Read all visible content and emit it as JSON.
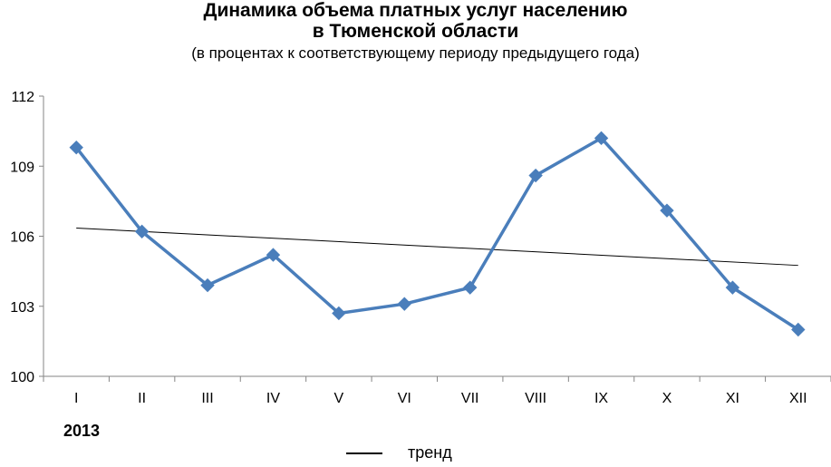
{
  "chart_data": {
    "type": "line",
    "title_line1": "Динамика объема платных услуг населению",
    "title_line2": "в Тюменской области",
    "subtitle": "(в процентах к соответствующему периоду предыдущего года)",
    "categories": [
      "I",
      "II",
      "III",
      "IV",
      "V",
      "VI",
      "VII",
      "VIII",
      "IX",
      "X",
      "XI",
      "XII"
    ],
    "series": [
      {
        "values": [
          109.8,
          106.2,
          103.9,
          105.2,
          102.7,
          103.1,
          103.8,
          108.6,
          110.2,
          107.1,
          103.8,
          102.0
        ]
      }
    ],
    "trend": {
      "name": "тренд",
      "start": 106.35,
      "end": 104.75
    },
    "ylim": [
      100,
      112
    ],
    "yticks": [
      "100",
      "103",
      "106",
      "109",
      "112"
    ],
    "year_label": "2013",
    "grid": false,
    "legend_position": "bottom",
    "colors": {
      "series": "#4a7ebb",
      "trend": "#000000"
    }
  }
}
